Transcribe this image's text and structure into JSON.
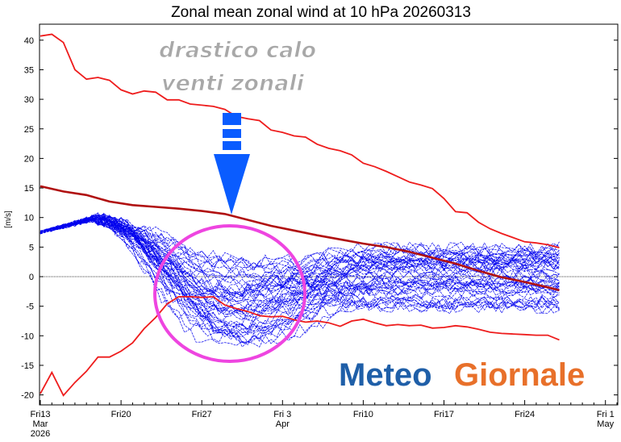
{
  "chart_data": {
    "type": "line",
    "title": "Zonal mean zonal wind at 10 hPa 20260313",
    "ylabel": "[m/s]",
    "ylim": [
      -22,
      44
    ],
    "yticks": [
      -20,
      -15,
      -10,
      -5,
      0,
      5,
      10,
      15,
      20,
      25,
      30,
      35,
      40
    ],
    "xticks": [
      {
        "day": 0,
        "line1": "Fri13",
        "line2": "Mar",
        "line3": "2026"
      },
      {
        "day": 7,
        "line1": "Fri20",
        "line2": "",
        "line3": ""
      },
      {
        "day": 14,
        "line1": "Fri27",
        "line2": "",
        "line3": ""
      },
      {
        "day": 21,
        "line1": "Fri 3",
        "line2": "Apr",
        "line3": ""
      },
      {
        "day": 28,
        "line1": "Fri10",
        "line2": "",
        "line3": ""
      },
      {
        "day": 35,
        "line1": "Fri17",
        "line2": "",
        "line3": ""
      },
      {
        "day": 42,
        "line1": "Fri24",
        "line2": "",
        "line3": ""
      },
      {
        "day": 49,
        "line1": "Fri 1",
        "line2": "May",
        "line3": ""
      }
    ],
    "xlim": [
      0,
      50.5
    ],
    "zero_line": true,
    "series": [
      {
        "role": "upper-envelope",
        "color": "#ee1c1c",
        "x": [
          0,
          1,
          2,
          3,
          4,
          5,
          6,
          7,
          8,
          9,
          10,
          11,
          12,
          13,
          14,
          15,
          16,
          17,
          18,
          19,
          20,
          21,
          22,
          23,
          24,
          25,
          26,
          27,
          28,
          29,
          30,
          31,
          32,
          33,
          34,
          35,
          36,
          37,
          38,
          39,
          40,
          41,
          42,
          43,
          44,
          45
        ],
        "y": [
          40.7,
          41,
          39.6,
          35,
          33.4,
          33.7,
          33.2,
          31.6,
          30.9,
          31.4,
          31.2,
          29.9,
          29.9,
          29.2,
          29,
          28.8,
          28.3,
          27.1,
          26.7,
          26.4,
          24.8,
          24.4,
          23.8,
          23.6,
          22.4,
          21.7,
          21.3,
          20.6,
          19.2,
          18.6,
          17.8,
          16.9,
          16,
          15.5,
          14.9,
          13.2,
          11,
          10.8,
          9.2,
          8.1,
          7.3,
          6.6,
          5.9,
          5.7,
          5.4,
          4.9
        ]
      },
      {
        "role": "climatology",
        "color": "#b01010",
        "x": [
          0,
          2,
          4,
          6,
          8,
          10,
          12,
          14,
          16,
          18,
          20,
          22,
          24,
          26,
          28,
          30,
          32,
          34,
          36,
          38,
          40,
          42,
          44,
          45
        ],
        "y": [
          15.3,
          14.4,
          13.8,
          12.7,
          12.1,
          11.8,
          11.5,
          11.1,
          10.6,
          9.6,
          8.6,
          7.8,
          7.0,
          6.3,
          5.6,
          5.0,
          4.2,
          3.2,
          2.2,
          1.0,
          -0.1,
          -0.9,
          -1.8,
          -2.3
        ]
      },
      {
        "role": "lower-envelope",
        "color": "#ee1c1c",
        "x": [
          0,
          1,
          2,
          3,
          4,
          5,
          6,
          7,
          8,
          9,
          10,
          11,
          12,
          13,
          14,
          15,
          16,
          17,
          18,
          19,
          20,
          21,
          22,
          23,
          24,
          25,
          26,
          27,
          28,
          29,
          30,
          31,
          32,
          33,
          34,
          35,
          36,
          37,
          38,
          39,
          40,
          41,
          42,
          43,
          44,
          45
        ],
        "y": [
          -19.8,
          -16.2,
          -20.1,
          -17.9,
          -16,
          -13.6,
          -13.6,
          -12.6,
          -11.2,
          -8.8,
          -6.9,
          -4.6,
          -3.4,
          -3.4,
          -3.5,
          -3.4,
          -4.8,
          -5.4,
          -5.9,
          -6.6,
          -6.8,
          -6.7,
          -7.3,
          -7.7,
          -7.5,
          -7.8,
          -8.4,
          -7.5,
          -7.2,
          -7.8,
          -8.3,
          -8.1,
          -8.3,
          -8.2,
          -8.7,
          -8.6,
          -8.3,
          -8.5,
          -8.9,
          -9.4,
          -9.6,
          -9.7,
          -9.8,
          -9.9,
          -9.9,
          -10.7
        ]
      }
    ],
    "ensemble": {
      "color": "#0000ee",
      "members": 51,
      "x_start": 0,
      "x_end": 45,
      "initial_value": 7.5,
      "peak": {
        "x": 4.5,
        "y": 9.8
      },
      "trough_center": {
        "x": 15.5,
        "y": -5.8
      },
      "trough_spread": [
        -13.8,
        2.5
      ],
      "final_spread": [
        -5.8,
        5.0
      ]
    },
    "annotations": [
      {
        "text": "drastico calo"
      },
      {
        "text": "venti zonali"
      }
    ],
    "logo": {
      "part1": "Meteo",
      "part2": "Giornale"
    },
    "colors": {
      "arrow": "#0a5cff",
      "circle": "#ee45e0",
      "zero_line": "#000000"
    }
  }
}
